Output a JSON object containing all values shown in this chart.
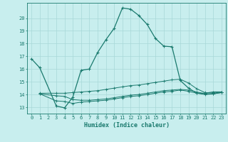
{
  "title": "",
  "xlabel": "Humidex (Indice chaleur)",
  "bg_color": "#c8eeee",
  "grid_color": "#a8d8d8",
  "line_color": "#1a7a6e",
  "xlim": [
    -0.5,
    23.5
  ],
  "ylim": [
    12.5,
    21.2
  ],
  "xticks": [
    0,
    1,
    2,
    3,
    4,
    5,
    6,
    7,
    8,
    9,
    10,
    11,
    12,
    13,
    14,
    15,
    16,
    17,
    18,
    19,
    20,
    21,
    22,
    23
  ],
  "yticks": [
    13,
    14,
    15,
    16,
    17,
    18,
    19,
    20
  ],
  "line1_x": [
    0,
    1,
    3,
    4,
    5,
    6,
    7,
    8,
    9,
    10,
    11,
    12,
    13,
    14,
    15,
    16,
    17,
    18,
    19,
    20,
    21,
    22,
    23
  ],
  "line1_y": [
    16.8,
    16.1,
    13.1,
    12.95,
    13.8,
    15.9,
    16.0,
    17.3,
    18.3,
    19.2,
    20.8,
    20.7,
    20.2,
    19.5,
    18.4,
    17.8,
    17.75,
    15.1,
    14.5,
    14.1,
    14.1,
    14.2,
    14.2
  ],
  "line2_x": [
    1,
    3,
    4,
    5,
    6,
    7,
    8,
    9,
    10,
    11,
    12,
    13,
    14,
    15,
    16,
    17,
    18,
    19,
    20,
    21,
    22,
    23
  ],
  "line2_y": [
    14.1,
    14.1,
    14.1,
    14.15,
    14.2,
    14.25,
    14.3,
    14.4,
    14.5,
    14.6,
    14.7,
    14.75,
    14.85,
    14.95,
    15.05,
    15.15,
    15.2,
    14.9,
    14.45,
    14.15,
    14.1,
    14.2
  ],
  "line3_x": [
    1,
    3,
    4,
    5,
    6,
    7,
    8,
    9,
    10,
    11,
    12,
    13,
    14,
    15,
    16,
    17,
    18,
    19,
    20,
    21,
    22,
    23
  ],
  "line3_y": [
    14.05,
    13.9,
    13.85,
    13.6,
    13.55,
    13.55,
    13.6,
    13.65,
    13.75,
    13.85,
    13.95,
    14.0,
    14.1,
    14.2,
    14.3,
    14.35,
    14.4,
    14.35,
    14.2,
    14.05,
    14.05,
    14.15
  ],
  "line4_x": [
    1,
    3,
    4,
    5,
    6,
    7,
    8,
    9,
    10,
    11,
    12,
    13,
    14,
    15,
    16,
    17,
    18,
    19,
    20,
    21,
    22,
    23
  ],
  "line4_y": [
    14.05,
    13.5,
    13.45,
    13.3,
    13.4,
    13.45,
    13.5,
    13.55,
    13.65,
    13.75,
    13.85,
    13.9,
    14.0,
    14.1,
    14.2,
    14.25,
    14.35,
    14.25,
    14.1,
    14.0,
    14.05,
    14.15
  ]
}
